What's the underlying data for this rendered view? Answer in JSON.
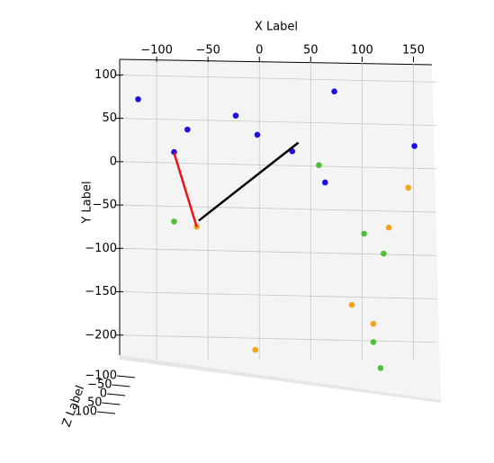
{
  "chart_data": {
    "type": "scatter",
    "xlabel": "X Label",
    "ylabel": "Y Label",
    "zlabel": "Z Label",
    "xlim": [
      -136,
      168
    ],
    "ylim": [
      -250,
      118
    ],
    "zlim": [
      -100,
      100
    ],
    "xticks": [
      {
        "value": -100,
        "label": "−100"
      },
      {
        "value": -50,
        "label": "−50"
      },
      0,
      50,
      100,
      150
    ],
    "yticks": [
      100,
      50,
      0,
      {
        "value": -50,
        "label": "−50"
      },
      {
        "value": -100,
        "label": "−100"
      },
      {
        "value": -150,
        "label": "−150"
      },
      {
        "value": -200,
        "label": "−200"
      }
    ],
    "zticks": [
      {
        "value": -100,
        "label": "−100"
      },
      {
        "value": -50,
        "label": "−50"
      },
      0,
      50,
      100
    ],
    "grid": true,
    "series": [
      {
        "color": "#1f10e0",
        "x": [
          -118,
          -70,
          -23,
          -2,
          -83,
          32,
          73,
          64,
          151
        ],
        "values": [
          72,
          37,
          53,
          31,
          11,
          12,
          81,
          -24,
          18
        ]
      },
      {
        "color": "#4fbf3a",
        "x": [
          58,
          -83,
          102,
          121,
          111,
          118
        ],
        "values": [
          -4,
          -69,
          -83,
          -106,
          -208,
          -238
        ]
      },
      {
        "color": "#f5a31a",
        "x": [
          -61,
          145,
          126,
          90,
          111,
          -4
        ],
        "values": [
          -75,
          -30,
          -76,
          -165,
          -187,
          -217
        ]
      }
    ],
    "lines": [
      {
        "color": "#ee1111",
        "x": [
          -83,
          -61
        ],
        "values": [
          10,
          -75
        ]
      },
      {
        "color": "#000000",
        "x": [
          -59,
          38
        ],
        "values": [
          -68,
          22
        ]
      }
    ]
  }
}
